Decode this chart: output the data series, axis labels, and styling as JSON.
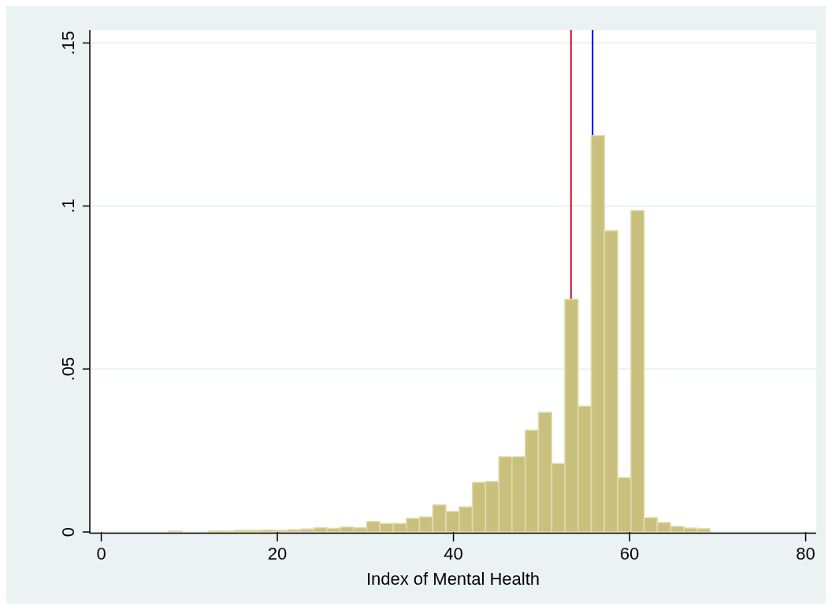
{
  "chart_data": {
    "type": "histogram",
    "xlabel": "Index of Mental Health",
    "bins": [
      7.65,
      9.15,
      10.65,
      12.15,
      13.65,
      15.15,
      16.65,
      18.15,
      19.65,
      21.15,
      22.65,
      24.15,
      25.65,
      27.15,
      28.65,
      30.15,
      31.65,
      33.15,
      34.65,
      36.15,
      37.65,
      39.15,
      40.65,
      42.15,
      43.65,
      45.15,
      46.65,
      48.15,
      49.65,
      51.15,
      52.65,
      54.15,
      55.65,
      57.15,
      58.65,
      60.15,
      61.65,
      63.15,
      64.65,
      66.15,
      67.65,
      69.15
    ],
    "values": [
      0.0003,
      0,
      0,
      0.0003,
      0.0003,
      0.0005,
      0.0005,
      0.0006,
      0.0005,
      0.0007,
      0.0009,
      0.0013,
      0.0011,
      0.0015,
      0.0013,
      0.0032,
      0.0026,
      0.0026,
      0.0042,
      0.0046,
      0.0083,
      0.0063,
      0.0077,
      0.0152,
      0.0155,
      0.0231,
      0.0231,
      0.0312,
      0.0367,
      0.021,
      0.0714,
      0.0386,
      0.1216,
      0.0924,
      0.0167,
      0.0986,
      0.0044,
      0.0029,
      0.0017,
      0.0012,
      0.001
    ],
    "color": "#c9c07e",
    "xlim": [
      -1.3,
      81.2
    ],
    "xticks": [
      0,
      20,
      40,
      60,
      80
    ],
    "ylim": [
      0,
      0.154
    ],
    "yticks": [
      {
        "value": 0,
        "label": "0"
      },
      {
        "value": 0.05,
        "label": ".05"
      },
      {
        "value": 0.1,
        "label": ".1"
      },
      {
        "value": 0.15,
        "label": ".15"
      }
    ],
    "grid": "y",
    "ref_lines": [
      {
        "axis": "x",
        "value": 53.35,
        "color": "#c8102e"
      },
      {
        "axis": "x",
        "value": 55.8,
        "color": "#0000ff"
      }
    ]
  }
}
